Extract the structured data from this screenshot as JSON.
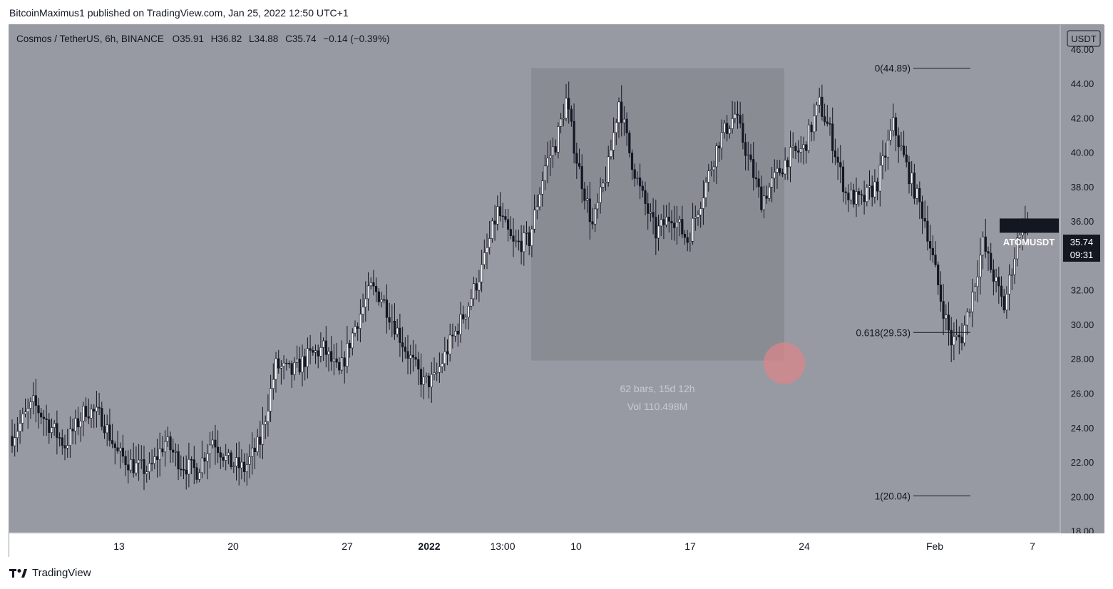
{
  "publisher": "BitcoinMaximus1 published on TradingView.com, Jan 25, 2022 12:50 UTC+1",
  "footer": {
    "brand": "TradingView",
    "logo_icon": "tradingview-logo-icon"
  },
  "colors": {
    "background": "#989aa3",
    "highlight_box": "#8a8c94",
    "candle_up": "#ffffff",
    "candle_down": "#131722",
    "marker_circle": "#d9868a",
    "text_dark": "#131722",
    "text_light": "#c8cad1"
  },
  "chart_data": {
    "type": "candlestick",
    "symbol_header": {
      "name": "Cosmos / TetherUS, 6h, BINANCE",
      "open_label": "O",
      "open": "35.91",
      "high_label": "H",
      "high": "36.82",
      "low_label": "L",
      "low": "34.88",
      "close_label": "C",
      "close": "35.74",
      "change": "−0.14 (−0.39%)"
    },
    "currency_label": "USDT",
    "y_axis": {
      "ticks": [
        "46.00",
        "44.00",
        "42.00",
        "40.00",
        "38.00",
        "36.00",
        "34.00",
        "32.00",
        "30.00",
        "28.00",
        "26.00",
        "24.00",
        "22.00",
        "20.00",
        "18.00"
      ],
      "ylim": [
        17.9,
        47.4
      ]
    },
    "x_axis": {
      "ticks": [
        {
          "label": "13",
          "bold": false
        },
        {
          "label": "20",
          "bold": false
        },
        {
          "label": "27",
          "bold": false
        },
        {
          "label": "2022",
          "bold": true
        },
        {
          "label": "13:00",
          "bold": false
        },
        {
          "label": "10",
          "bold": false
        },
        {
          "label": "17",
          "bold": false
        },
        {
          "label": "24",
          "bold": false
        },
        {
          "label": "Feb",
          "bold": false
        },
        {
          "label": "7",
          "bold": false
        }
      ]
    },
    "price_tag": {
      "symbol": "ATOMUSDT",
      "price": "35.74",
      "countdown": "09:31",
      "value": 35.74
    },
    "fib_levels": [
      {
        "label": "0(44.89)",
        "value": 44.89
      },
      {
        "label": "0.618(29.53)",
        "value": 29.53
      },
      {
        "label": "1(20.04)",
        "value": 20.04
      }
    ],
    "date_range_box": {
      "high": 44.89,
      "low": 27.9,
      "bars_label": "62 bars, 15d 12h",
      "vol_label": "Vol 110.498M"
    },
    "marker": {
      "type": "circle",
      "value": 27.95
    },
    "legend": false,
    "grid": false
  }
}
